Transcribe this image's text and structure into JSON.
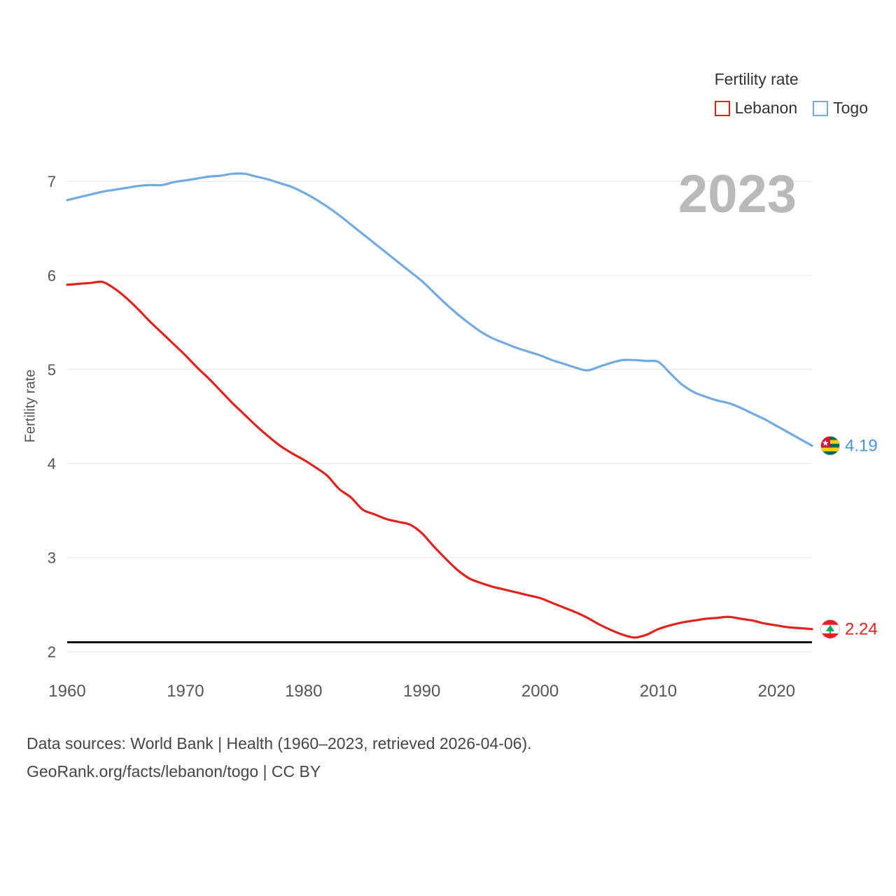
{
  "legend": {
    "title": "Fertility rate",
    "items": [
      {
        "label": "Lebanon",
        "color": "#e0231e"
      },
      {
        "label": "Togo",
        "color": "#72abe0"
      }
    ]
  },
  "footer": {
    "line1": "Data sources: World Bank | Health (1960–2023, retrieved 2026-04-06).",
    "line2": "GeoRank.org/facts/lebanon/togo | CC BY"
  },
  "chart_data": {
    "type": "line",
    "title": "Fertility rate",
    "xlabel": "",
    "ylabel": "Fertility rate",
    "watermark": "2023",
    "ylim": [
      2,
      7.3
    ],
    "yticks": [
      2,
      3,
      4,
      5,
      6,
      7
    ],
    "xticks": [
      1960,
      1970,
      1980,
      1990,
      2000,
      2010,
      2020
    ],
    "grid": true,
    "legend_position": "top-right",
    "reference_line": 2.1,
    "x": [
      1960,
      1961,
      1962,
      1963,
      1964,
      1965,
      1966,
      1967,
      1968,
      1969,
      1970,
      1971,
      1972,
      1973,
      1974,
      1975,
      1976,
      1977,
      1978,
      1979,
      1980,
      1981,
      1982,
      1983,
      1984,
      1985,
      1986,
      1987,
      1988,
      1989,
      1990,
      1991,
      1992,
      1993,
      1994,
      1995,
      1996,
      1997,
      1998,
      1999,
      2000,
      2001,
      2002,
      2003,
      2004,
      2005,
      2006,
      2007,
      2008,
      2009,
      2010,
      2011,
      2012,
      2013,
      2014,
      2015,
      2016,
      2017,
      2018,
      2019,
      2020,
      2021,
      2022,
      2023
    ],
    "series": [
      {
        "name": "Togo",
        "color": "#72abe0",
        "label_color": "#4b96d8",
        "end_label": "4.19",
        "flag": "togo",
        "values": [
          6.8,
          6.83,
          6.86,
          6.89,
          6.91,
          6.93,
          6.95,
          6.96,
          6.96,
          6.99,
          7.01,
          7.03,
          7.05,
          7.06,
          7.08,
          7.08,
          7.05,
          7.02,
          6.98,
          6.94,
          6.88,
          6.81,
          6.73,
          6.64,
          6.54,
          6.44,
          6.34,
          6.24,
          6.14,
          6.04,
          5.94,
          5.82,
          5.7,
          5.59,
          5.49,
          5.4,
          5.33,
          5.28,
          5.23,
          5.19,
          5.15,
          5.1,
          5.06,
          5.02,
          4.99,
          5.03,
          5.07,
          5.1,
          5.1,
          5.09,
          5.08,
          4.96,
          4.84,
          4.76,
          4.71,
          4.67,
          4.64,
          4.59,
          4.53,
          4.47,
          4.4,
          4.33,
          4.26,
          4.19
        ]
      },
      {
        "name": "Lebanon",
        "color": "#e0231e",
        "label_color": "#e0231e",
        "end_label": "2.24",
        "flag": "lebanon",
        "values": [
          5.9,
          5.91,
          5.92,
          5.93,
          5.86,
          5.76,
          5.64,
          5.51,
          5.39,
          5.27,
          5.15,
          5.02,
          4.9,
          4.77,
          4.64,
          4.52,
          4.4,
          4.29,
          4.19,
          4.11,
          4.04,
          3.96,
          3.87,
          3.73,
          3.64,
          3.51,
          3.46,
          3.41,
          3.38,
          3.35,
          3.26,
          3.12,
          2.99,
          2.87,
          2.78,
          2.73,
          2.69,
          2.66,
          2.63,
          2.6,
          2.57,
          2.52,
          2.47,
          2.42,
          2.36,
          2.29,
          2.23,
          2.18,
          2.15,
          2.18,
          2.24,
          2.28,
          2.31,
          2.33,
          2.35,
          2.36,
          2.37,
          2.35,
          2.33,
          2.3,
          2.28,
          2.26,
          2.25,
          2.24
        ]
      }
    ]
  }
}
